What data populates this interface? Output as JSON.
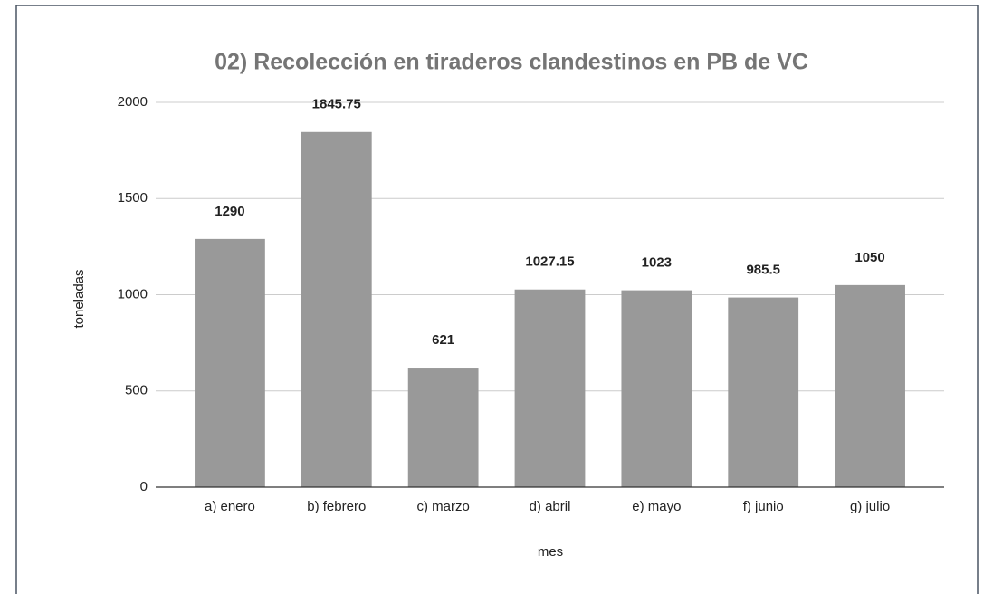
{
  "chart_data": {
    "type": "bar",
    "title": "02) Recolección en tiraderos clandestinos en PB de VC",
    "x_label": "mes",
    "y_label": "toneladas",
    "categories": [
      "a) enero",
      "b) febrero",
      "c) marzo",
      "d) abril",
      "e) mayo",
      "f) junio",
      "g) julio"
    ],
    "values": [
      1290,
      1845.75,
      621,
      1027.15,
      1023,
      985.5,
      1050
    ],
    "color": "#999999",
    "ylim": [
      0,
      2000
    ],
    "yticks": [
      0,
      500,
      1000,
      1500,
      2000
    ],
    "grid": true
  }
}
